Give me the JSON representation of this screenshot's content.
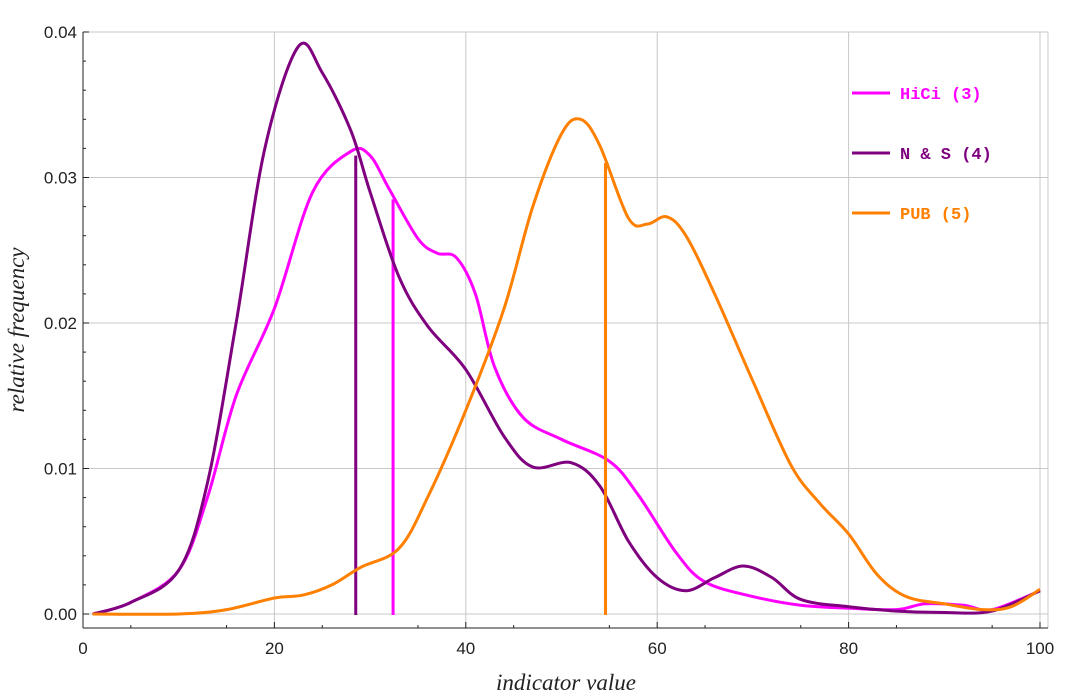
{
  "chart_data": {
    "type": "line",
    "title": "",
    "xlabel": "indicator value",
    "ylabel": "relative frequency",
    "xlim": [
      0,
      100
    ],
    "ylim": [
      0,
      0.04
    ],
    "xticks": [
      0,
      20,
      40,
      60,
      80,
      100
    ],
    "xtick_labels": [
      "0",
      "20",
      "40",
      "60",
      "80",
      "100"
    ],
    "yticks": [
      0,
      0.01,
      0.02,
      0.03,
      0.04
    ],
    "ytick_labels": [
      "0.00",
      "0.01",
      "0.02",
      "0.03",
      "0.04"
    ],
    "grid": true,
    "legend_position": "top-right",
    "series": [
      {
        "name": "HiCi (3)",
        "color": "#ff00ff",
        "x": [
          1,
          5,
          10,
          13,
          16,
          20,
          24,
          28,
          30,
          32,
          35,
          37,
          39,
          41,
          43,
          46,
          50,
          55,
          58,
          62,
          65,
          70,
          75,
          80,
          85,
          88,
          92,
          95,
          100
        ],
        "y": [
          0,
          0.0008,
          0.003,
          0.008,
          0.015,
          0.021,
          0.029,
          0.0318,
          0.0315,
          0.0292,
          0.0258,
          0.0248,
          0.0245,
          0.022,
          0.017,
          0.0135,
          0.012,
          0.0105,
          0.0082,
          0.0042,
          0.0022,
          0.0012,
          0.0006,
          0.0004,
          0.0003,
          0.0007,
          0.0006,
          0.0003,
          0.0016
        ],
        "marker": {
          "x": 32.4,
          "y": 0.0285
        }
      },
      {
        "name": "N & S (4)",
        "color": "#7f007f",
        "x": [
          1,
          5,
          10,
          13,
          16,
          19,
          22.5,
          25,
          28,
          30,
          33,
          36,
          40,
          44,
          47,
          51,
          54,
          57,
          60,
          63,
          66,
          69,
          72,
          75,
          80,
          85,
          90,
          95,
          100
        ],
        "y": [
          0,
          0.0008,
          0.003,
          0.009,
          0.02,
          0.032,
          0.039,
          0.0372,
          0.0332,
          0.029,
          0.0232,
          0.0198,
          0.0168,
          0.0122,
          0.0101,
          0.0104,
          0.0088,
          0.005,
          0.0025,
          0.0016,
          0.0025,
          0.0033,
          0.0025,
          0.001,
          0.0005,
          0.0002,
          0.0001,
          0.0002,
          0.0016
        ],
        "marker": {
          "x": 28.5,
          "y": 0.0315
        }
      },
      {
        "name": "PUB (5)",
        "color": "#ff8000",
        "x": [
          1,
          10,
          15,
          20,
          23,
          26,
          29,
          33,
          36,
          40,
          44,
          47,
          50,
          52,
          54,
          57,
          59,
          61,
          63,
          66,
          70,
          74,
          77,
          80,
          83,
          86,
          90,
          94,
          97,
          100
        ],
        "y": [
          0,
          0,
          0.0003,
          0.0011,
          0.0013,
          0.002,
          0.0032,
          0.0045,
          0.008,
          0.014,
          0.021,
          0.028,
          0.033,
          0.034,
          0.0322,
          0.0272,
          0.0268,
          0.0273,
          0.026,
          0.022,
          0.016,
          0.0102,
          0.0076,
          0.0055,
          0.0027,
          0.0012,
          0.0007,
          0.0003,
          0.0005,
          0.0017
        ],
        "marker": {
          "x": 54.6,
          "y": 0.031
        }
      }
    ]
  }
}
